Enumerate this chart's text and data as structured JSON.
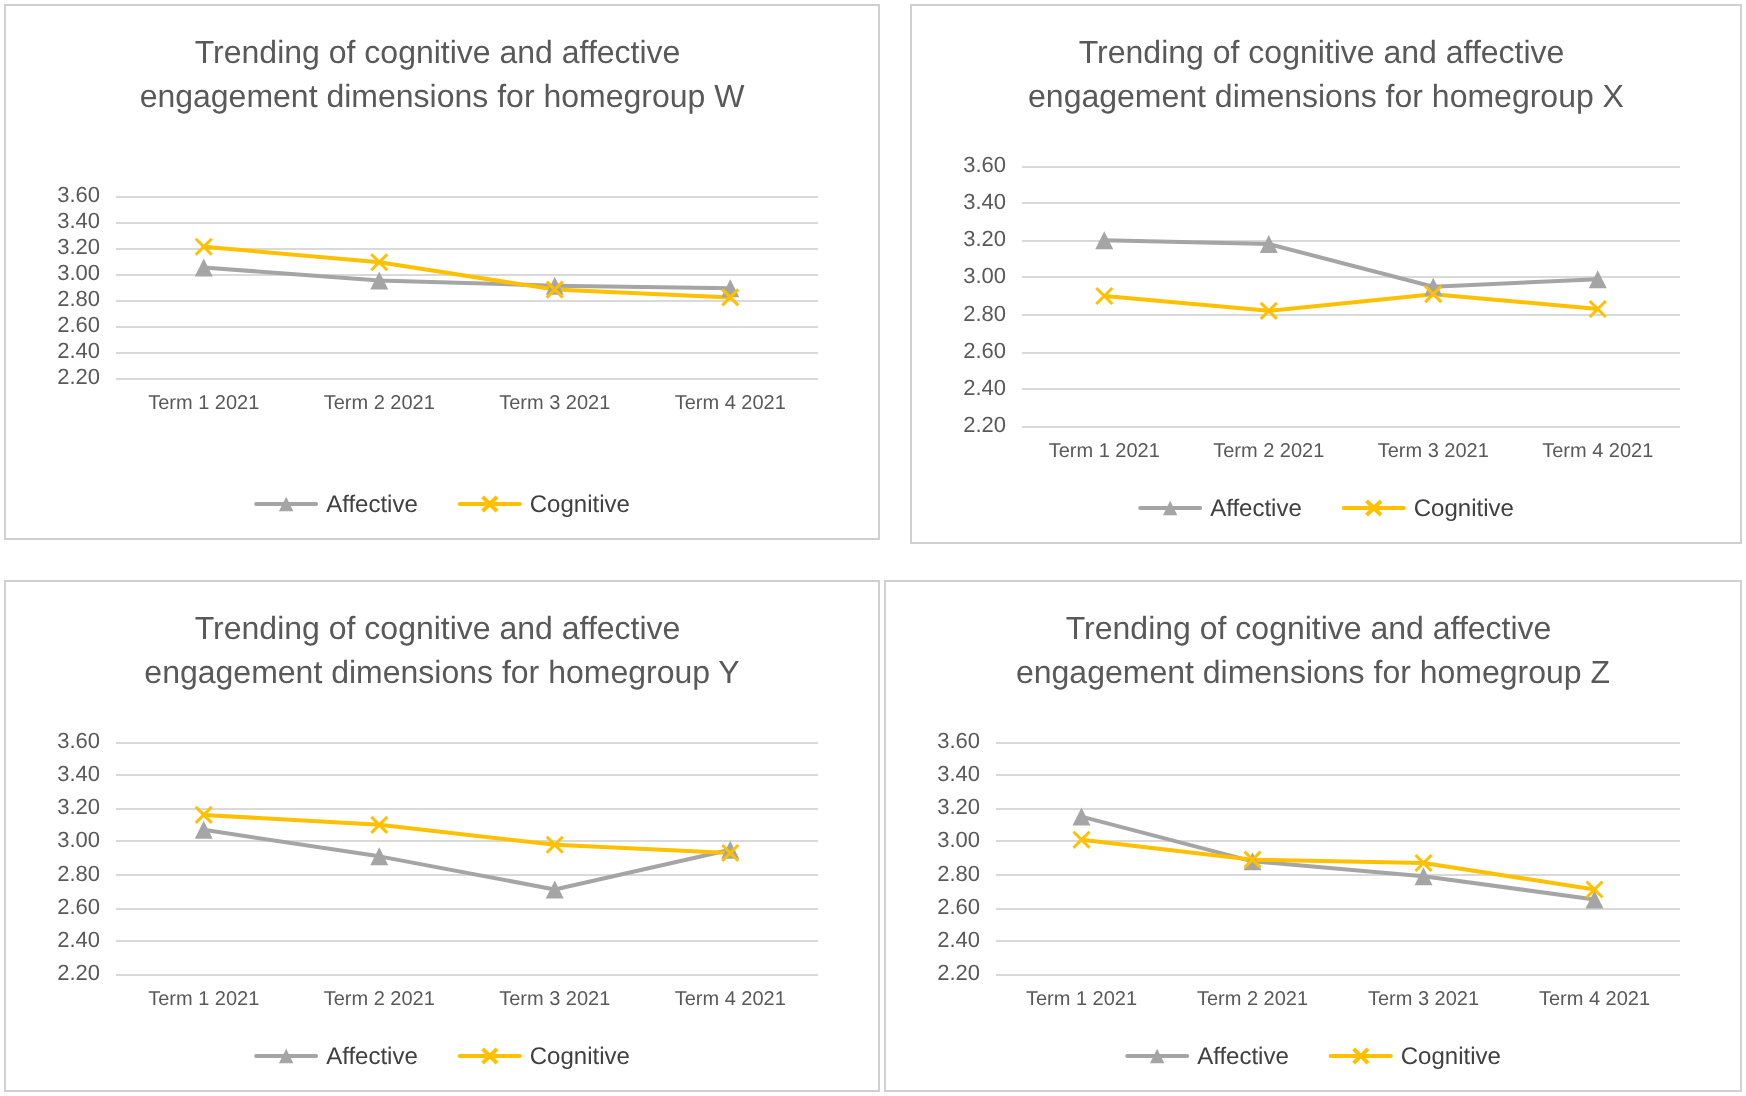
{
  "chart_data": [
    {
      "type": "line",
      "title": "Trending of cognitive and affective engagement dimensions for homegroup W",
      "categories": [
        "Term 1 2021",
        "Term 2 2021",
        "Term 3 2021",
        "Term 4 2021"
      ],
      "series": [
        {
          "name": "Affective",
          "color": "#a5a5a5",
          "marker": "triangle",
          "values": [
            3.05,
            2.95,
            2.91,
            2.89
          ]
        },
        {
          "name": "Cognitive",
          "color": "#ffc000",
          "marker": "cross",
          "values": [
            3.21,
            3.09,
            2.88,
            2.82
          ]
        }
      ],
      "ylim": [
        2.2,
        3.6
      ],
      "yticks": [
        {
          "value": 2.2,
          "label": "2.20"
        },
        {
          "value": 2.4,
          "label": "2.40"
        },
        {
          "value": 2.6,
          "label": "2.60"
        },
        {
          "value": 2.8,
          "label": "2.80"
        },
        {
          "value": 3.0,
          "label": "3.00"
        },
        {
          "value": 3.2,
          "label": "3.20"
        },
        {
          "value": 3.4,
          "label": "3.40"
        },
        {
          "value": 3.6,
          "label": "3.60"
        }
      ],
      "grid": "y",
      "legend": "bottom",
      "line_style": "solid"
    },
    {
      "type": "line",
      "title": "Trending of cognitive and affective engagement dimensions for homegroup X",
      "categories": [
        "Term 1 2021",
        "Term 2 2021",
        "Term 3 2021",
        "Term 4 2021"
      ],
      "series": [
        {
          "name": "Affective",
          "color": "#a5a5a5",
          "marker": "triangle",
          "values": [
            3.2,
            3.18,
            2.95,
            2.99
          ]
        },
        {
          "name": "Cognitive",
          "color": "#ffc000",
          "marker": "cross",
          "values": [
            2.9,
            2.82,
            2.91,
            2.83
          ]
        }
      ],
      "ylim": [
        2.2,
        3.6
      ],
      "yticks": [
        {
          "value": 2.2,
          "label": "2.20"
        },
        {
          "value": 2.4,
          "label": "2.40"
        },
        {
          "value": 2.6,
          "label": "2.60"
        },
        {
          "value": 2.8,
          "label": "2.80"
        },
        {
          "value": 3.0,
          "label": "3.00"
        },
        {
          "value": 3.2,
          "label": "3.20"
        },
        {
          "value": 3.4,
          "label": "3.40"
        },
        {
          "value": 3.6,
          "label": "3.60"
        }
      ],
      "grid": "y",
      "legend": "bottom",
      "line_style": "solid"
    },
    {
      "type": "line",
      "title": "Trending of cognitive and affective engagement dimensions for homegroup Y",
      "categories": [
        "Term 1 2021",
        "Term 2 2021",
        "Term 3 2021",
        "Term 4 2021"
      ],
      "series": [
        {
          "name": "Affective",
          "color": "#a5a5a5",
          "marker": "triangle",
          "values": [
            3.07,
            2.91,
            2.71,
            2.95
          ]
        },
        {
          "name": "Cognitive",
          "color": "#ffc000",
          "marker": "cross",
          "values": [
            3.16,
            3.1,
            2.98,
            2.93
          ]
        }
      ],
      "ylim": [
        2.2,
        3.6
      ],
      "yticks": [
        {
          "value": 2.2,
          "label": "2.20"
        },
        {
          "value": 2.4,
          "label": "2.40"
        },
        {
          "value": 2.6,
          "label": "2.60"
        },
        {
          "value": 2.8,
          "label": "2.80"
        },
        {
          "value": 3.0,
          "label": "3.00"
        },
        {
          "value": 3.2,
          "label": "3.20"
        },
        {
          "value": 3.4,
          "label": "3.40"
        },
        {
          "value": 3.6,
          "label": "3.60"
        }
      ],
      "grid": "y",
      "legend": "bottom",
      "line_style": "solid"
    },
    {
      "type": "line",
      "title": "Trending of cognitive and affective engagement dimensions for homegroup Z",
      "categories": [
        "Term 1 2021",
        "Term 2 2021",
        "Term 3 2021",
        "Term 4 2021"
      ],
      "series": [
        {
          "name": "Affective",
          "color": "#a5a5a5",
          "marker": "triangle",
          "values": [
            3.15,
            2.88,
            2.79,
            2.65
          ]
        },
        {
          "name": "Cognitive",
          "color": "#ffc000",
          "marker": "cross",
          "values": [
            3.01,
            2.89,
            2.87,
            2.71
          ]
        }
      ],
      "ylim": [
        2.2,
        3.6
      ],
      "yticks": [
        {
          "value": 2.2,
          "label": "2.20"
        },
        {
          "value": 2.4,
          "label": "2.40"
        },
        {
          "value": 2.6,
          "label": "2.60"
        },
        {
          "value": 2.8,
          "label": "2.80"
        },
        {
          "value": 3.0,
          "label": "3.00"
        },
        {
          "value": 3.2,
          "label": "3.20"
        },
        {
          "value": 3.4,
          "label": "3.40"
        },
        {
          "value": 3.6,
          "label": "3.60"
        }
      ],
      "grid": "y",
      "legend": "bottom",
      "line_style": "solid"
    }
  ]
}
